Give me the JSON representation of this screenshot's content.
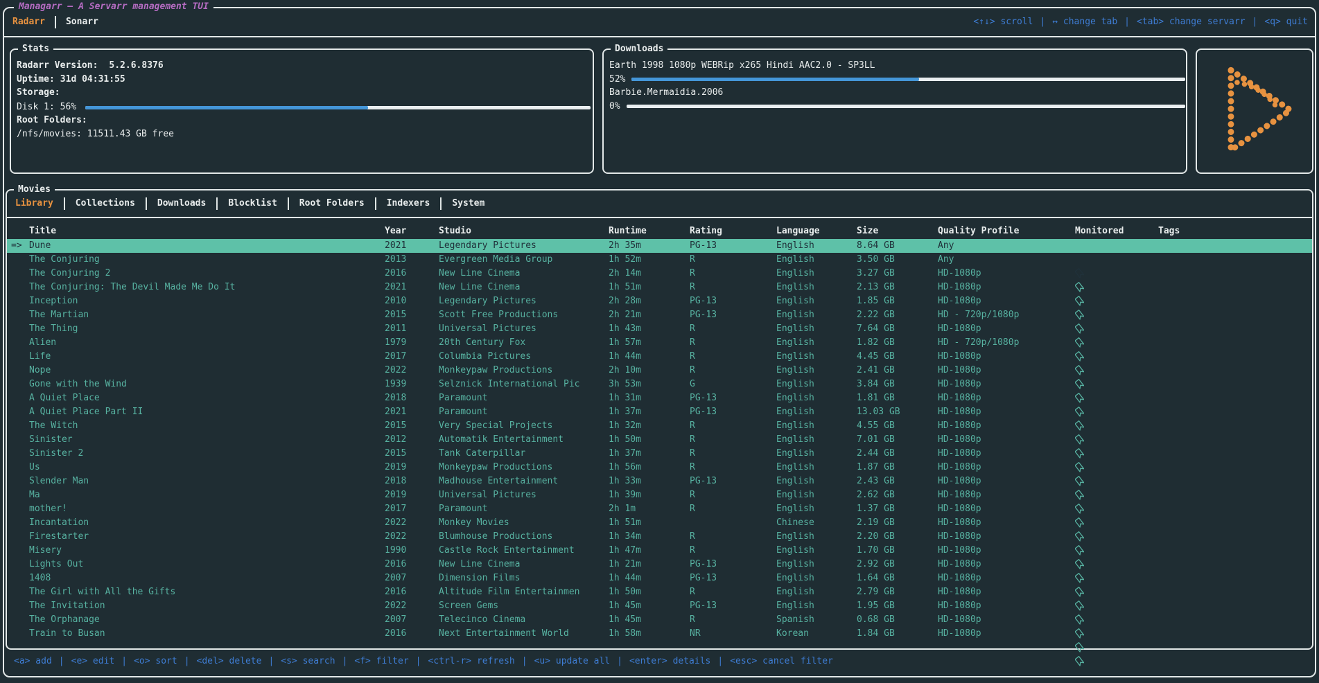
{
  "app": {
    "title": "Managarr – A Servarr management TUI",
    "servarr_tabs": [
      {
        "label": "Radarr",
        "active": true
      },
      {
        "label": "Sonarr",
        "active": false
      }
    ],
    "top_help": [
      {
        "key": "<↑↓>",
        "action": "scroll"
      },
      {
        "key": "↔",
        "action": "change tab"
      },
      {
        "key": "<tab>",
        "action": "change servarr"
      },
      {
        "key": "<q>",
        "action": "quit"
      }
    ]
  },
  "stats": {
    "title": "Stats",
    "version_label": "Radarr Version:",
    "version_value": "5.2.6.8376",
    "uptime_label": "Uptime:",
    "uptime_value": "31d 04:31:55",
    "storage_label": "Storage:",
    "disk_label": "Disk 1: 56%",
    "disk_percent": 56,
    "root_folders_label": "Root Folders:",
    "root_folder_value": "/nfs/movies: 11511.43 GB free"
  },
  "downloads": {
    "title": "Downloads",
    "items": [
      {
        "name": "Earth 1998 1080p WEBRip x265 Hindi AAC2.0 - SP3LL",
        "percent_label": "52%",
        "percent": 52
      },
      {
        "name": "Barbie.Mermaidia.2006",
        "percent_label": "0%",
        "percent": 0
      }
    ]
  },
  "movies": {
    "title": "Movies",
    "tabs": [
      "Library",
      "Collections",
      "Downloads",
      "Blocklist",
      "Root Folders",
      "Indexers",
      "System"
    ],
    "active_tab": "Library",
    "columns": [
      "Title",
      "Year",
      "Studio",
      "Runtime",
      "Rating",
      "Language",
      "Size",
      "Quality Profile",
      "Monitored",
      "Tags"
    ],
    "selection_indicator": "=>",
    "selected_index": 0,
    "rows": [
      {
        "title": "Dune",
        "year": "2021",
        "studio": "Legendary Pictures",
        "runtime": "2h 35m",
        "rating": "PG-13",
        "language": "English",
        "size": "8.64 GB",
        "quality": "Any",
        "monitored": true,
        "tags": ""
      },
      {
        "title": "The Conjuring",
        "year": "2013",
        "studio": "Evergreen Media Group",
        "runtime": "1h 52m",
        "rating": "R",
        "language": "English",
        "size": "3.50 GB",
        "quality": "Any",
        "monitored": true,
        "tags": ""
      },
      {
        "title": "The Conjuring 2",
        "year": "2016",
        "studio": "New Line Cinema",
        "runtime": "2h 14m",
        "rating": "R",
        "language": "English",
        "size": "3.27 GB",
        "quality": "HD-1080p",
        "monitored": true,
        "tags": ""
      },
      {
        "title": "The Conjuring: The Devil Made Me Do It",
        "year": "2021",
        "studio": "New Line Cinema",
        "runtime": "1h 51m",
        "rating": "R",
        "language": "English",
        "size": "2.13 GB",
        "quality": "HD-1080p",
        "monitored": true,
        "tags": ""
      },
      {
        "title": "Inception",
        "year": "2010",
        "studio": "Legendary Pictures",
        "runtime": "2h 28m",
        "rating": "PG-13",
        "language": "English",
        "size": "1.85 GB",
        "quality": "HD-1080p",
        "monitored": true,
        "tags": ""
      },
      {
        "title": "The Martian",
        "year": "2015",
        "studio": "Scott Free Productions",
        "runtime": "2h 21m",
        "rating": "PG-13",
        "language": "English",
        "size": "2.22 GB",
        "quality": "HD - 720p/1080p",
        "monitored": true,
        "tags": ""
      },
      {
        "title": "The Thing",
        "year": "2011",
        "studio": "Universal Pictures",
        "runtime": "1h 43m",
        "rating": "R",
        "language": "English",
        "size": "7.64 GB",
        "quality": "HD-1080p",
        "monitored": true,
        "tags": ""
      },
      {
        "title": "Alien",
        "year": "1979",
        "studio": "20th Century Fox",
        "runtime": "1h 57m",
        "rating": "R",
        "language": "English",
        "size": "1.82 GB",
        "quality": "HD - 720p/1080p",
        "monitored": true,
        "tags": ""
      },
      {
        "title": "Life",
        "year": "2017",
        "studio": "Columbia Pictures",
        "runtime": "1h 44m",
        "rating": "R",
        "language": "English",
        "size": "4.45 GB",
        "quality": "HD-1080p",
        "monitored": true,
        "tags": ""
      },
      {
        "title": "Nope",
        "year": "2022",
        "studio": "Monkeypaw Productions",
        "runtime": "2h 10m",
        "rating": "R",
        "language": "English",
        "size": "2.41 GB",
        "quality": "HD-1080p",
        "monitored": true,
        "tags": ""
      },
      {
        "title": "Gone with the Wind",
        "year": "1939",
        "studio": "Selznick International Pic",
        "runtime": "3h 53m",
        "rating": "G",
        "language": "English",
        "size": "3.84 GB",
        "quality": "HD-1080p",
        "monitored": true,
        "tags": ""
      },
      {
        "title": "A Quiet Place",
        "year": "2018",
        "studio": "Paramount",
        "runtime": "1h 31m",
        "rating": "PG-13",
        "language": "English",
        "size": "1.81 GB",
        "quality": "HD-1080p",
        "monitored": true,
        "tags": ""
      },
      {
        "title": "A Quiet Place Part II",
        "year": "2021",
        "studio": "Paramount",
        "runtime": "1h 37m",
        "rating": "PG-13",
        "language": "English",
        "size": "13.03 GB",
        "quality": "HD-1080p",
        "monitored": true,
        "tags": ""
      },
      {
        "title": "The Witch",
        "year": "2015",
        "studio": "Very Special Projects",
        "runtime": "1h 32m",
        "rating": "R",
        "language": "English",
        "size": "4.55 GB",
        "quality": "HD-1080p",
        "monitored": true,
        "tags": ""
      },
      {
        "title": "Sinister",
        "year": "2012",
        "studio": "Automatik Entertainment",
        "runtime": "1h 50m",
        "rating": "R",
        "language": "English",
        "size": "7.01 GB",
        "quality": "HD-1080p",
        "monitored": true,
        "tags": ""
      },
      {
        "title": "Sinister 2",
        "year": "2015",
        "studio": "Tank Caterpillar",
        "runtime": "1h 37m",
        "rating": "R",
        "language": "English",
        "size": "2.44 GB",
        "quality": "HD-1080p",
        "monitored": true,
        "tags": ""
      },
      {
        "title": "Us",
        "year": "2019",
        "studio": "Monkeypaw Productions",
        "runtime": "1h 56m",
        "rating": "R",
        "language": "English",
        "size": "1.87 GB",
        "quality": "HD-1080p",
        "monitored": true,
        "tags": ""
      },
      {
        "title": "Slender Man",
        "year": "2018",
        "studio": "Madhouse Entertainment",
        "runtime": "1h 33m",
        "rating": "PG-13",
        "language": "English",
        "size": "2.43 GB",
        "quality": "HD-1080p",
        "monitored": true,
        "tags": ""
      },
      {
        "title": "Ma",
        "year": "2019",
        "studio": "Universal Pictures",
        "runtime": "1h 39m",
        "rating": "R",
        "language": "English",
        "size": "2.62 GB",
        "quality": "HD-1080p",
        "monitored": true,
        "tags": ""
      },
      {
        "title": "mother!",
        "year": "2017",
        "studio": "Paramount",
        "runtime": "2h 1m",
        "rating": "R",
        "language": "English",
        "size": "1.37 GB",
        "quality": "HD-1080p",
        "monitored": true,
        "tags": ""
      },
      {
        "title": "Incantation",
        "year": "2022",
        "studio": "Monkey Movies",
        "runtime": "1h 51m",
        "rating": "",
        "language": "Chinese",
        "size": "2.19 GB",
        "quality": "HD-1080p",
        "monitored": true,
        "tags": ""
      },
      {
        "title": "Firestarter",
        "year": "2022",
        "studio": "Blumhouse Productions",
        "runtime": "1h 34m",
        "rating": "R",
        "language": "English",
        "size": "2.20 GB",
        "quality": "HD-1080p",
        "monitored": true,
        "tags": ""
      },
      {
        "title": "Misery",
        "year": "1990",
        "studio": "Castle Rock Entertainment",
        "runtime": "1h 47m",
        "rating": "R",
        "language": "English",
        "size": "1.70 GB",
        "quality": "HD-1080p",
        "monitored": true,
        "tags": ""
      },
      {
        "title": "Lights Out",
        "year": "2016",
        "studio": "New Line Cinema",
        "runtime": "1h 21m",
        "rating": "PG-13",
        "language": "English",
        "size": "2.92 GB",
        "quality": "HD-1080p",
        "monitored": true,
        "tags": ""
      },
      {
        "title": "1408",
        "year": "2007",
        "studio": "Dimension Films",
        "runtime": "1h 44m",
        "rating": "PG-13",
        "language": "English",
        "size": "1.64 GB",
        "quality": "HD-1080p",
        "monitored": true,
        "tags": ""
      },
      {
        "title": "The Girl with All the Gifts",
        "year": "2016",
        "studio": "Altitude Film Entertainmen",
        "runtime": "1h 50m",
        "rating": "R",
        "language": "English",
        "size": "2.79 GB",
        "quality": "HD-1080p",
        "monitored": true,
        "tags": ""
      },
      {
        "title": "The Invitation",
        "year": "2022",
        "studio": "Screen Gems",
        "runtime": "1h 45m",
        "rating": "PG-13",
        "language": "English",
        "size": "1.95 GB",
        "quality": "HD-1080p",
        "monitored": true,
        "tags": ""
      },
      {
        "title": "The Orphanage",
        "year": "2007",
        "studio": "Telecinco Cinema",
        "runtime": "1h 45m",
        "rating": "R",
        "language": "Spanish",
        "size": "0.68 GB",
        "quality": "HD-1080p",
        "monitored": true,
        "tags": ""
      },
      {
        "title": "Train to Busan",
        "year": "2016",
        "studio": "Next Entertainment World",
        "runtime": "1h 58m",
        "rating": "NR",
        "language": "Korean",
        "size": "1.84 GB",
        "quality": "HD-1080p",
        "monitored": true,
        "tags": ""
      }
    ]
  },
  "bottom_help": [
    {
      "key": "<a>",
      "action": "add"
    },
    {
      "key": "<e>",
      "action": "edit"
    },
    {
      "key": "<o>",
      "action": "sort"
    },
    {
      "key": "<del>",
      "action": "delete"
    },
    {
      "key": "<s>",
      "action": "search"
    },
    {
      "key": "<f>",
      "action": "filter"
    },
    {
      "key": "<ctrl-r>",
      "action": "refresh"
    },
    {
      "key": "<u>",
      "action": "update all"
    },
    {
      "key": "<enter>",
      "action": "details"
    },
    {
      "key": "<esc>",
      "action": "cancel filter"
    }
  ],
  "icons": {
    "monitored": "bookmark-icon",
    "logo": "radarr-logo"
  },
  "colors": {
    "background": "#1f2d33",
    "border": "#e3e8e8",
    "accent_orange": "#e79240",
    "accent_teal": "#57b2a1",
    "selected_row_bg": "#5ec1a8",
    "accent_blue": "#3e7cd2",
    "bar_blue": "#4496d8",
    "accent_purple": "#b56cc2"
  }
}
